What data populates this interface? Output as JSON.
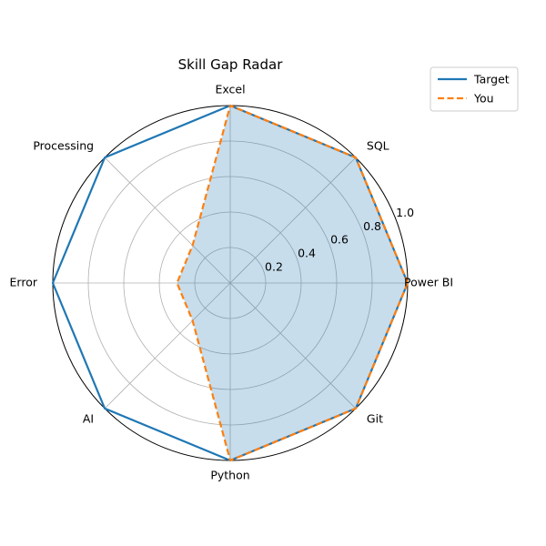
{
  "chart_data": {
    "type": "radar",
    "title": "Skill Gap Radar",
    "categories": [
      "Power BI",
      "SQL",
      "Excel",
      "Processing",
      "Error",
      "AI",
      "Python",
      "Git"
    ],
    "radial_ticks": [
      "0.2",
      "0.4",
      "0.6",
      "0.8",
      "1.0"
    ],
    "rlim": [
      0,
      1
    ],
    "series": [
      {
        "name": "Target",
        "values": [
          1.0,
          1.0,
          1.0,
          1.0,
          1.0,
          1.0,
          1.0,
          1.0
        ],
        "color": "#1f77b4",
        "style": "solid"
      },
      {
        "name": "You",
        "values": [
          1.0,
          1.0,
          1.0,
          0.3,
          0.3,
          0.3,
          1.0,
          1.0
        ],
        "color": "#ff7f0e",
        "style": "dashed",
        "fill": "#1f77b4",
        "fill_opacity": 0.25
      }
    ],
    "grid": true,
    "legend_position": "top-right"
  }
}
